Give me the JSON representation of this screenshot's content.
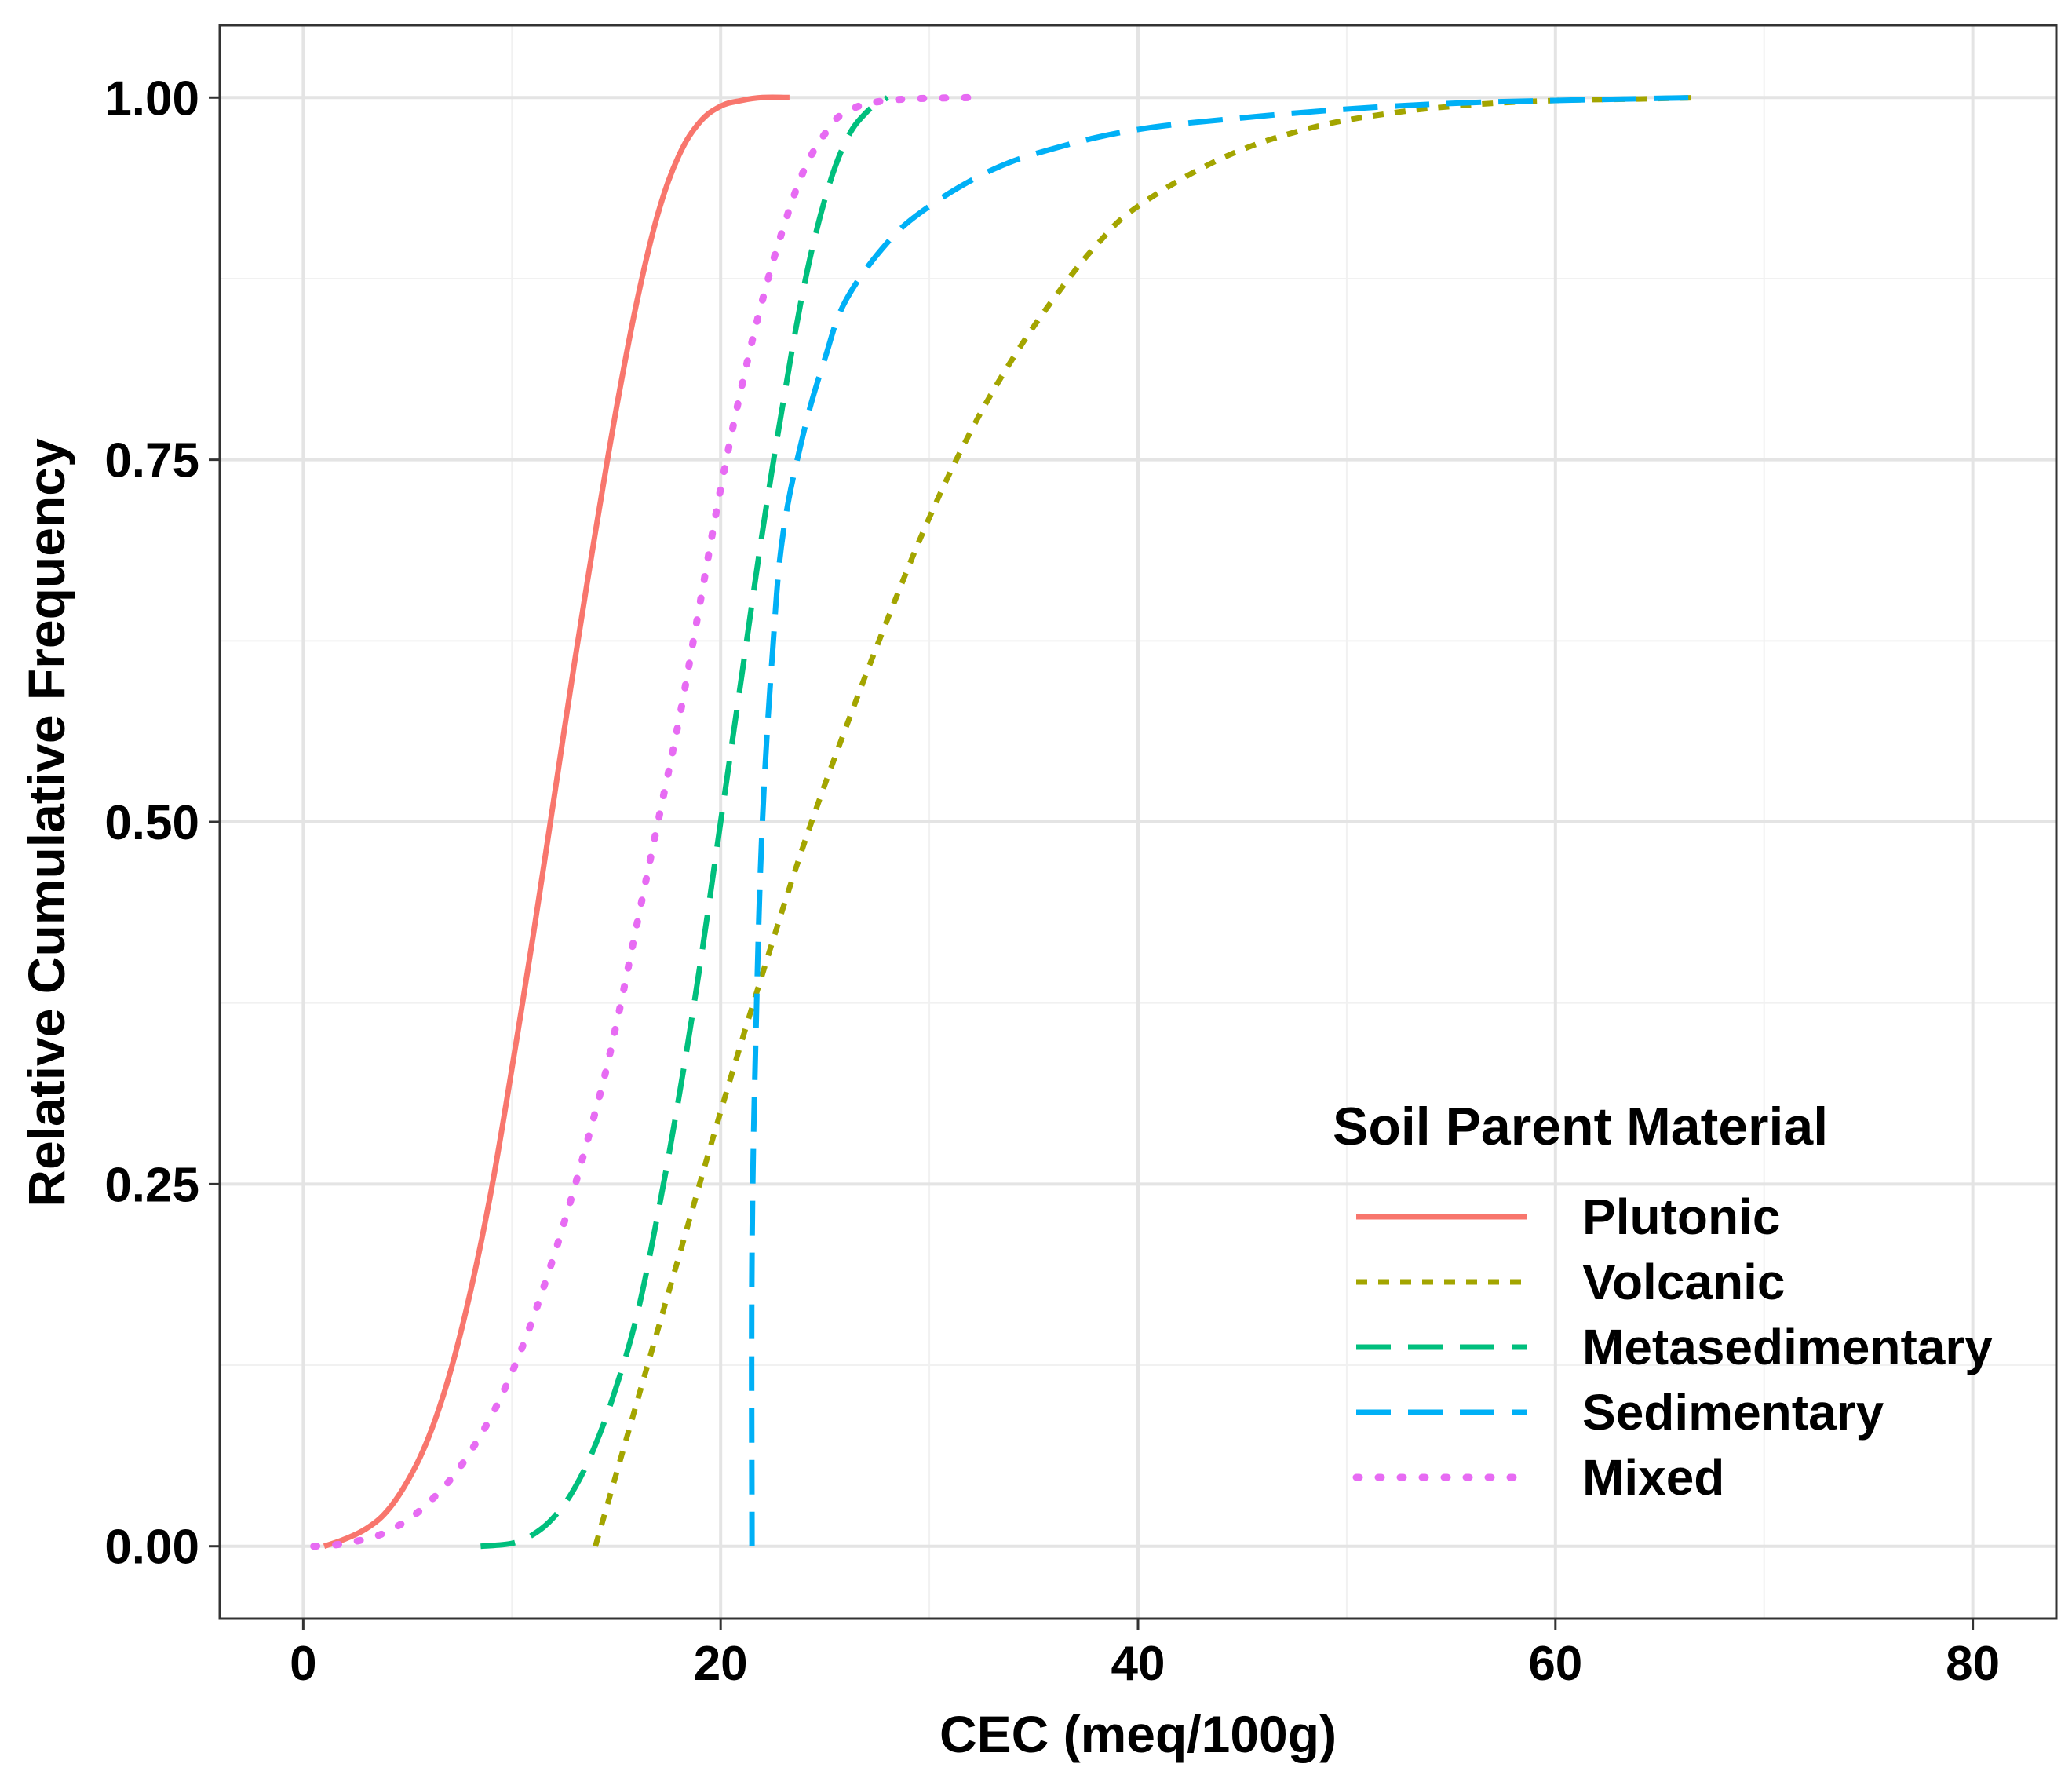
{
  "chart_data": {
    "type": "line",
    "title": "",
    "xlabel": "CEC (meq/100g)",
    "ylabel": "Relative Cumulative Frequency",
    "xlim": [
      -4,
      84
    ],
    "ylim": [
      -0.05,
      1.05
    ],
    "x_ticks": [
      0,
      20,
      40,
      60,
      80
    ],
    "x_tick_labels": [
      "0",
      "20",
      "40",
      "60",
      "80"
    ],
    "y_ticks": [
      0,
      0.25,
      0.5,
      0.75,
      1.0
    ],
    "y_tick_labels": [
      "0.00",
      "0.25",
      "0.50",
      "0.75",
      "1.00"
    ],
    "grid": true,
    "legend": {
      "title": "Soil  Parent  Material",
      "placement": "bottom-right inside"
    },
    "series": [
      {
        "name": "Plutonic",
        "color": "#F8766D",
        "dash": "solid",
        "x": [
          1,
          2,
          3,
          4,
          5,
          6,
          7,
          8,
          9,
          10,
          11,
          12,
          13,
          14,
          15,
          16,
          17,
          18,
          19,
          20,
          21,
          22,
          23.3
        ],
        "y": [
          0.0,
          0.005,
          0.012,
          0.024,
          0.045,
          0.075,
          0.118,
          0.175,
          0.245,
          0.33,
          0.42,
          0.515,
          0.61,
          0.7,
          0.785,
          0.86,
          0.92,
          0.96,
          0.983,
          0.994,
          0.998,
          1.0,
          1.0
        ]
      },
      {
        "name": "Volcanic",
        "color": "#A3A500",
        "dash": "short",
        "x": [
          14,
          16,
          18,
          20,
          22,
          24,
          26,
          28,
          30,
          32,
          34,
          36,
          38,
          40,
          44,
          48,
          52,
          56,
          60,
          64,
          67
        ],
        "y": [
          0.0,
          0.1,
          0.2,
          0.3,
          0.395,
          0.485,
          0.565,
          0.64,
          0.71,
          0.77,
          0.82,
          0.862,
          0.898,
          0.925,
          0.958,
          0.978,
          0.989,
          0.995,
          0.998,
          0.999,
          1.0
        ]
      },
      {
        "name": "Metasedimentary",
        "color": "#00BF7D",
        "dash": "long",
        "x": [
          8.5,
          10,
          11,
          12,
          13,
          14,
          15,
          16,
          17,
          18,
          19,
          20,
          21,
          22,
          23,
          24,
          25,
          26,
          27,
          28
        ],
        "y": [
          0.0,
          0.002,
          0.008,
          0.02,
          0.04,
          0.07,
          0.11,
          0.16,
          0.23,
          0.31,
          0.4,
          0.5,
          0.6,
          0.7,
          0.79,
          0.87,
          0.93,
          0.97,
          0.99,
          1.0
        ]
      },
      {
        "name": "Sedimentary",
        "color": "#00B0F6",
        "dash": "long",
        "x": [
          21.5,
          21.5,
          21.7,
          22,
          22.5,
          23,
          24,
          25,
          26,
          28,
          30,
          33,
          36,
          40,
          45,
          50,
          55,
          60,
          67
        ],
        "y": [
          0.0,
          0.2,
          0.36,
          0.5,
          0.62,
          0.7,
          0.77,
          0.82,
          0.86,
          0.9,
          0.925,
          0.95,
          0.965,
          0.978,
          0.986,
          0.992,
          0.996,
          0.998,
          1.0
        ]
      },
      {
        "name": "Mixed",
        "color": "#E76BF3",
        "dash": "dotted",
        "x": [
          0.5,
          2,
          4,
          6,
          8,
          10,
          12,
          14,
          15,
          16,
          17,
          18,
          19,
          20,
          21,
          22,
          23,
          24,
          25,
          26,
          28,
          32
        ],
        "y": [
          0.0,
          0.002,
          0.01,
          0.03,
          0.065,
          0.12,
          0.2,
          0.3,
          0.36,
          0.43,
          0.5,
          0.57,
          0.65,
          0.73,
          0.8,
          0.86,
          0.91,
          0.95,
          0.975,
          0.99,
          0.998,
          1.0
        ]
      }
    ]
  }
}
